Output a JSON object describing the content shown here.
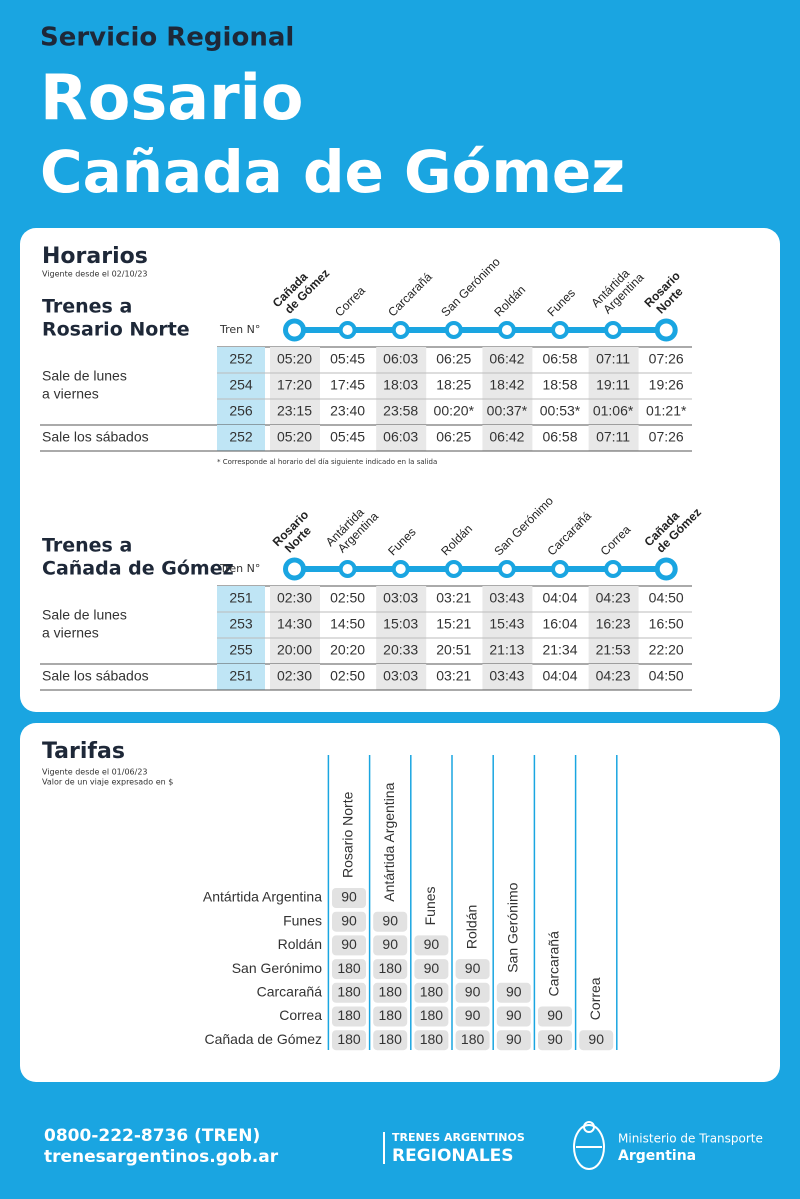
{
  "header": {
    "subtitle": "Servicio Regional",
    "title_lines": [
      "Rosario",
      "Cañada de Gómez"
    ]
  },
  "horarios": {
    "title": "Horarios",
    "valid": "Vigente desde el 02/10/23",
    "sections": [
      {
        "heading_lines": [
          "Trenes a",
          "Rosario Norte"
        ],
        "tren_label": "Tren N°",
        "stations": [
          [
            "Cañada",
            "de Gómez"
          ],
          [
            "Correa"
          ],
          [
            "Carcarañá"
          ],
          [
            "San Gerónimo"
          ],
          [
            "Roldán"
          ],
          [
            "Funes"
          ],
          [
            "Antártida",
            "Argentina"
          ],
          [
            "Rosario",
            "Norte"
          ]
        ],
        "groups": [
          {
            "label_lines": [
              "Sale de lunes",
              "a viernes"
            ],
            "rows": [
              {
                "tren": "252",
                "times": [
                  "05:20",
                  "05:45",
                  "06:03",
                  "06:25",
                  "06:42",
                  "06:58",
                  "07:11",
                  "07:26"
                ]
              },
              {
                "tren": "254",
                "times": [
                  "17:20",
                  "17:45",
                  "18:03",
                  "18:25",
                  "18:42",
                  "18:58",
                  "19:11",
                  "19:26"
                ]
              },
              {
                "tren": "256",
                "times": [
                  "23:15",
                  "23:40",
                  "23:58",
                  "00:20*",
                  "00:37*",
                  "00:53*",
                  "01:06*",
                  "01:21*"
                ]
              }
            ]
          },
          {
            "label_lines": [
              "Sale los sábados"
            ],
            "rows": [
              {
                "tren": "252",
                "times": [
                  "05:20",
                  "05:45",
                  "06:03",
                  "06:25",
                  "06:42",
                  "06:58",
                  "07:11",
                  "07:26"
                ]
              }
            ]
          }
        ],
        "note": "* Corresponde al horario del día siguiente indicado en la salida"
      },
      {
        "heading_lines": [
          "Trenes a",
          "Cañada de Gómez"
        ],
        "tren_label": "Tren N°",
        "stations": [
          [
            "Rosario",
            "Norte"
          ],
          [
            "Antártida",
            "Argentina"
          ],
          [
            "Funes"
          ],
          [
            "Roldán"
          ],
          [
            "San Gerónimo"
          ],
          [
            "Carcarañá"
          ],
          [
            "Correa"
          ],
          [
            "Cañada",
            "de Gómez"
          ]
        ],
        "groups": [
          {
            "label_lines": [
              "Sale de lunes",
              "a viernes"
            ],
            "rows": [
              {
                "tren": "251",
                "times": [
                  "02:30",
                  "02:50",
                  "03:03",
                  "03:21",
                  "03:43",
                  "04:04",
                  "04:23",
                  "04:50"
                ]
              },
              {
                "tren": "253",
                "times": [
                  "14:30",
                  "14:50",
                  "15:03",
                  "15:21",
                  "15:43",
                  "16:04",
                  "16:23",
                  "16:50"
                ]
              },
              {
                "tren": "255",
                "times": [
                  "20:00",
                  "20:20",
                  "20:33",
                  "20:51",
                  "21:13",
                  "21:34",
                  "21:53",
                  "22:20"
                ]
              }
            ]
          },
          {
            "label_lines": [
              "Sale los sábados"
            ],
            "rows": [
              {
                "tren": "251",
                "times": [
                  "02:30",
                  "02:50",
                  "03:03",
                  "03:21",
                  "03:43",
                  "04:04",
                  "04:23",
                  "04:50"
                ]
              }
            ]
          }
        ]
      }
    ]
  },
  "tarifas": {
    "title": "Tarifas",
    "notes": [
      "Vigente desde el 01/06/23",
      "Valor de un viaje expresado en $"
    ],
    "columns": [
      "Rosario Norte",
      "Antártida Argentina",
      "Funes",
      "Roldán",
      "San Gerónimo",
      "Carcarañá",
      "Correa"
    ],
    "rows": [
      {
        "name": "Antártida Argentina",
        "values": [
          90
        ]
      },
      {
        "name": "Funes",
        "values": [
          90,
          90
        ]
      },
      {
        "name": "Roldán",
        "values": [
          90,
          90,
          90
        ]
      },
      {
        "name": "San Gerónimo",
        "values": [
          180,
          180,
          90,
          90
        ]
      },
      {
        "name": "Carcarañá",
        "values": [
          180,
          180,
          180,
          90,
          90
        ]
      },
      {
        "name": "Correa",
        "values": [
          180,
          180,
          180,
          90,
          90,
          90
        ]
      },
      {
        "name": "Cañada de Gómez",
        "values": [
          180,
          180,
          180,
          180,
          90,
          90,
          90
        ]
      }
    ]
  },
  "footer": {
    "phone": "0800-222-8736 (TREN)",
    "web": "trenesargentinos.gob.ar",
    "brand_lines": [
      "TRENES ARGENTINOS",
      "REGIONALES"
    ],
    "ministry_lines": [
      "Ministerio de Transporte",
      "Argentina"
    ]
  }
}
